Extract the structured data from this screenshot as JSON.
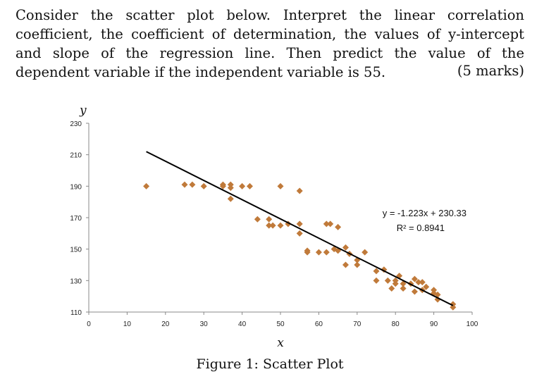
{
  "question": {
    "text": "Consider the scatter plot below. Interpret the linear correlation coefficient, the coefficient of determination, the values of y-intercept and slope of the regression line. Then predict the value of the dependent variable if the independent variable is 55.",
    "marks": "(5 marks)"
  },
  "caption": "Figure 1: Scatter Plot",
  "chart_data": {
    "type": "scatter",
    "xlabel": "x",
    "ylabel": "y",
    "xlim": [
      0,
      100
    ],
    "ylim": [
      110,
      230
    ],
    "xticks": [
      "0",
      "10",
      "20",
      "30",
      "40",
      "50",
      "60",
      "70",
      "80",
      "90",
      "100"
    ],
    "yticks": [
      "110",
      "130",
      "150",
      "170",
      "190",
      "210",
      "230"
    ],
    "grid": false,
    "marker_color": "#c07a3a",
    "trendline_color": "#000000",
    "equation": "y = -1.223x + 230.33",
    "r_squared": "R² = 0.8941",
    "trendline": {
      "slope": -1.223,
      "intercept": 230.33,
      "x_range": [
        15,
        95
      ]
    },
    "points": [
      [
        15,
        190
      ],
      [
        25,
        191
      ],
      [
        27,
        191
      ],
      [
        30,
        190
      ],
      [
        35,
        191
      ],
      [
        35,
        190
      ],
      [
        37,
        191
      ],
      [
        37,
        189
      ],
      [
        37,
        182
      ],
      [
        40,
        190
      ],
      [
        42,
        190
      ],
      [
        44,
        169
      ],
      [
        47,
        169
      ],
      [
        47,
        165
      ],
      [
        48,
        165
      ],
      [
        50,
        190
      ],
      [
        50,
        165
      ],
      [
        52,
        166
      ],
      [
        55,
        187
      ],
      [
        55,
        166
      ],
      [
        55,
        160
      ],
      [
        57,
        149
      ],
      [
        57,
        148
      ],
      [
        60,
        148
      ],
      [
        62,
        148
      ],
      [
        62,
        166
      ],
      [
        63,
        166
      ],
      [
        65,
        164
      ],
      [
        64,
        150
      ],
      [
        65,
        149
      ],
      [
        67,
        151
      ],
      [
        67,
        140
      ],
      [
        68,
        147
      ],
      [
        70,
        143
      ],
      [
        70,
        140
      ],
      [
        72,
        148
      ],
      [
        75,
        136
      ],
      [
        75,
        130
      ],
      [
        77,
        137
      ],
      [
        78,
        130
      ],
      [
        79,
        125
      ],
      [
        80,
        130
      ],
      [
        80,
        128
      ],
      [
        81,
        133
      ],
      [
        82,
        128
      ],
      [
        82,
        125
      ],
      [
        84,
        128
      ],
      [
        85,
        131
      ],
      [
        85,
        123
      ],
      [
        86,
        129
      ],
      [
        87,
        129
      ],
      [
        87,
        124
      ],
      [
        88,
        126
      ],
      [
        90,
        124
      ],
      [
        90,
        122
      ],
      [
        91,
        121
      ],
      [
        91,
        118
      ],
      [
        95,
        115
      ],
      [
        95,
        113
      ]
    ]
  }
}
